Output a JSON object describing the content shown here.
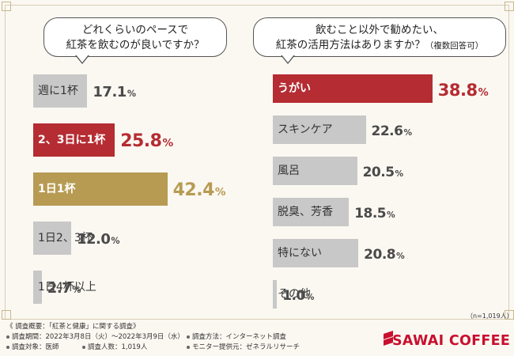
{
  "chart_data": [
    {
      "type": "bar",
      "orientation": "horizontal",
      "title": "どれくらいのペースで紅茶を飲むのが良いですか？",
      "title_lines": [
        "どれくらいのペースで",
        "紅茶を飲むのが良いですか？"
      ],
      "categories": [
        "週に1杯",
        "2、3日に1杯",
        "1日1杯",
        "1日2、3杯",
        "1日4杯以上"
      ],
      "values": [
        17.1,
        25.8,
        42.4,
        12.0,
        2.7
      ],
      "value_labels": [
        "17.1",
        "25.8",
        "42.4",
        "12.0",
        "2.7"
      ],
      "unit": "%",
      "highlight": [
        "none",
        "red",
        "gold",
        "none",
        "none"
      ],
      "xlim": [
        0,
        100
      ]
    },
    {
      "type": "bar",
      "orientation": "horizontal",
      "title": "飲むこと以外で勧めたい、紅茶の活用方法はありますか？（複数回答可）",
      "title_lines": [
        "飲むこと以外で勧めたい、",
        "紅茶の活用方法はありますか？"
      ],
      "title_note": "（複数回答可）",
      "categories": [
        "うがい",
        "スキンケア",
        "風呂",
        "脱臭、芳香",
        "特にない",
        "その他"
      ],
      "values": [
        38.8,
        22.6,
        20.5,
        18.5,
        20.8,
        1.0
      ],
      "value_labels": [
        "38.8",
        "22.6",
        "20.5",
        "18.5",
        "20.8",
        "1.0"
      ],
      "unit": "%",
      "highlight": [
        "red",
        "none",
        "none",
        "none",
        "none",
        "none"
      ],
      "sample_note": "（n=1,019人）",
      "xlim": [
        0,
        100
      ]
    }
  ],
  "colors": {
    "gray": "#c8c8c8",
    "red": "#b52c32",
    "gold": "#b79b52",
    "brand_red": "#c8102e",
    "text": "#222222"
  },
  "footer": {
    "overview": "《 調査概要：「紅茶と健康」に関する調査》",
    "period": "調査期間：2022年3月8日（火）～2022年3月9日（水）",
    "method": "調査方法：インターネット調査",
    "target": "調査対象：医師",
    "people": "調査人数：1,019人",
    "monitor": "モニター提供元：ゼネラルリサーチ"
  },
  "brand": {
    "name": "SAWAI COFFEE",
    "logo_icon": "sawai-coffee-logo-icon"
  }
}
